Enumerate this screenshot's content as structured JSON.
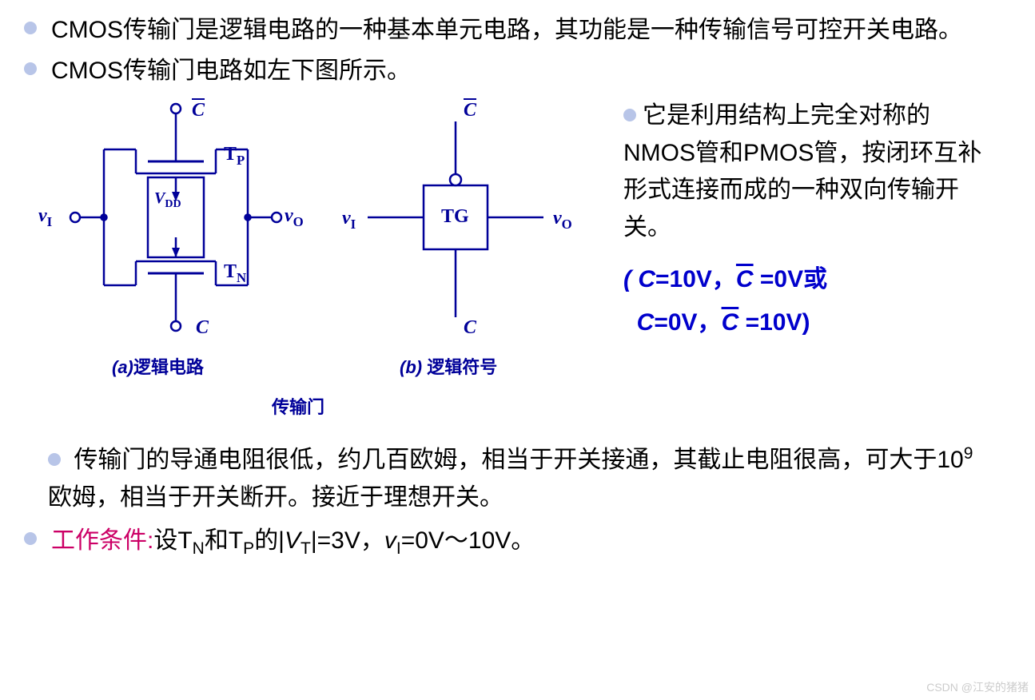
{
  "bullets": {
    "p1": "CMOS传输门是逻辑电路的一种基本单元电路，其功能是一种传输信号可控开关电路。",
    "p2": "CMOS传输门电路如左下图所示。",
    "p3_lead": "它是利用结构上完全对称的NMOS管和PMOS管，按闭环互补形式连接而成的一种双向传输开关。",
    "cond1_a": "( ",
    "cond1_b": "=10V，",
    "cond1_c": " =0V或",
    "cond2_a": "",
    "cond2_b": "=0V，",
    "cond2_c": " =10V)",
    "p4_pre": " 传输门的导通电阻很低，约几百欧姆，相当于开关接通，其截止电阻很高，可大于10",
    "p4_sup": "9",
    "p4_post": "欧姆，相当于开关断开。接近于理想开关。",
    "p5_label": "工作条件:",
    "p5_a": "设T",
    "p5_b": "和T",
    "p5_c": "的|",
    "p5_d": "|=3V，",
    "p5_e": "=0V～10V。"
  },
  "labels": {
    "C": "C",
    "Cbar": "C",
    "vI": "v",
    "vI_sub": "I",
    "vO": "v",
    "vO_sub": "O",
    "TP": "T",
    "TP_sub": "P",
    "TN": "T",
    "TN_sub": "N",
    "VDD": "V",
    "VDD_sub": "DD",
    "TG": "TG",
    "VT": "V",
    "VT_sub": "T"
  },
  "captions": {
    "a": "(a)逻辑电路",
    "b": "(b) 逻辑符号",
    "main": "传输门"
  },
  "watermark": "CSDN @江安的猪猪",
  "colors": {
    "bullet": "#b8c5e8",
    "text": "#000000",
    "blue": "#0000cc",
    "darkblue": "#000099",
    "red": "#cc0066",
    "stroke": "#000099"
  }
}
